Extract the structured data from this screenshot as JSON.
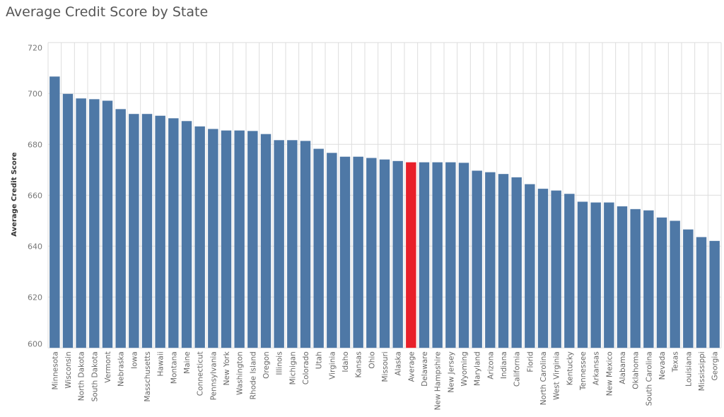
{
  "chart_data": {
    "type": "bar",
    "title": "Average Credit Score by State",
    "xlabel": "",
    "ylabel": "Average Credit Score",
    "ylim": [
      600,
      720
    ],
    "yticks": [
      600,
      620,
      640,
      660,
      680,
      700,
      720
    ],
    "grid": true,
    "colors": {
      "bar": "#4e78a6",
      "highlight": "#e8202a",
      "grid": "#dddddd"
    },
    "highlight_category": "Average",
    "categories": [
      "Minnesota",
      "Wisconsin",
      "North Dakota",
      "South Dakota",
      "Vermont",
      "Nebraska",
      "Iowa",
      "Masschusetts",
      "Hawaii",
      "Montana",
      "Maine",
      "Connecticut",
      "Pennsylvania",
      "New York",
      "Washington",
      "Rhode Island",
      "Oregon",
      "Illinois",
      "Michigan",
      "Colorado",
      "Utah",
      "Virginia",
      "Idaho",
      "Kansas",
      "Ohio",
      "Missouri",
      "Alaska",
      "Average",
      "Delaware",
      "New Hampshire",
      "New Jersey",
      "Wyoming",
      "Maryland",
      "Arizona",
      "Indiana",
      "California",
      "Florid",
      "North Carolina",
      "West Virginia",
      "Kentucky",
      "Tennessee",
      "Arkansas",
      "New Mexico",
      "Alabama",
      "Oklahoma",
      "South Carolina",
      "Nevada",
      "Texas",
      "Louisiana",
      "Mississippi",
      "Georgia"
    ],
    "values": [
      706.7,
      699.9,
      698.1,
      697.8,
      697.2,
      693.9,
      692.0,
      692.0,
      691.3,
      690.3,
      689.2,
      687.1,
      686.1,
      685.5,
      685.5,
      685.3,
      684.1,
      681.7,
      681.7,
      681.4,
      678.3,
      676.7,
      675.2,
      675.2,
      674.7,
      674.1,
      673.5,
      673.0,
      673.0,
      673.0,
      673.0,
      672.8,
      669.7,
      669.1,
      668.4,
      667.1,
      664.4,
      662.6,
      661.9,
      660.6,
      657.5,
      657.2,
      657.2,
      655.7,
      654.6,
      654.1,
      651.3,
      650.0,
      646.6,
      643.6,
      642.1
    ]
  }
}
